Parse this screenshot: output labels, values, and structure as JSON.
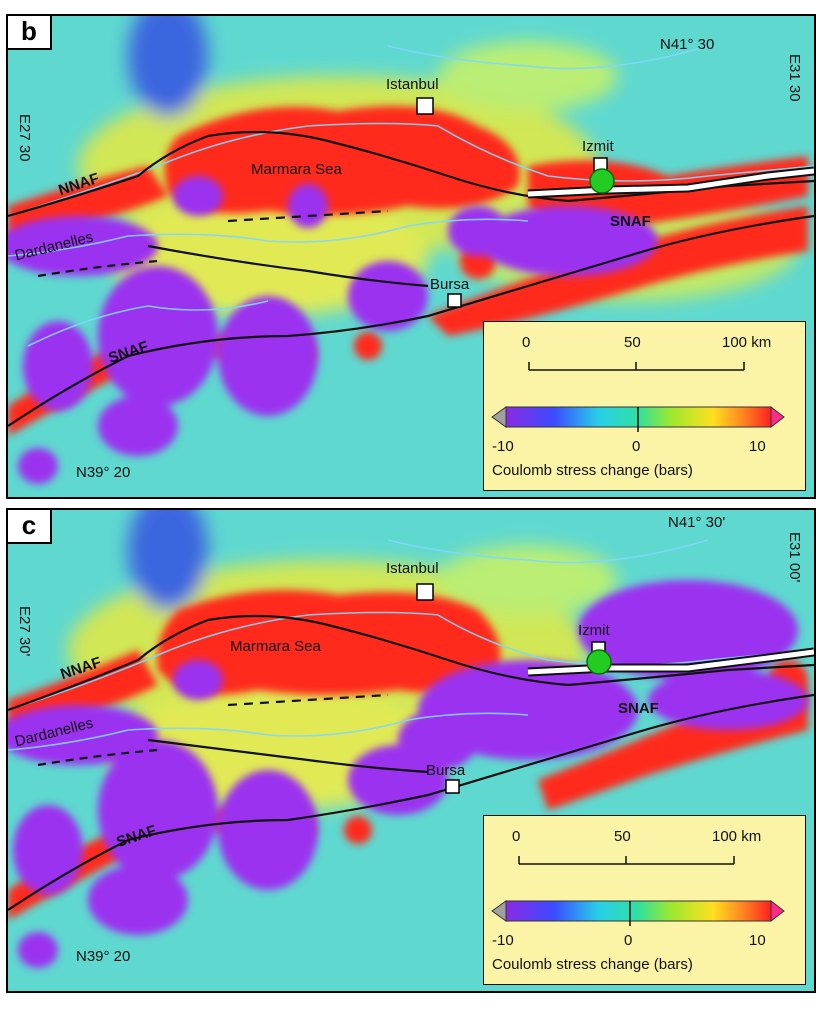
{
  "colors": {
    "ocean_bg": "#5fd8d0",
    "stress_increase": "#ff2a1a",
    "stress_decrease": "#9b32f0",
    "fault_trace": "#111111",
    "coastline": "#7fd8ff",
    "legend_bg": "#fbf3a6",
    "epicenter": "#22cc22"
  },
  "panels": [
    {
      "letter": "b",
      "labels": {
        "lat_top": "N41° 30",
        "lat_bottom": "N39° 20",
        "lon_left": "E27 30",
        "lon_right": "E31 30",
        "nnaf": "NNAF",
        "snaf_west": "SNAF",
        "snaf_east": "SNAF",
        "marmara": "Marmara Sea",
        "dardanelles": "Dardanelles",
        "istanbul": "Istanbul",
        "izmit": "Izmit",
        "bursa": "Bursa"
      },
      "legend": {
        "scale_ticks": [
          "0",
          "50",
          "100 km"
        ],
        "color_ticks": [
          "-10",
          "0",
          "10"
        ],
        "colorbar_title": "Coulomb stress change (bars)"
      }
    },
    {
      "letter": "c",
      "labels": {
        "lat_top": "N41° 30'",
        "lat_bottom": "N39° 20",
        "lon_left": "E27 30'",
        "lon_right": "E31 00'",
        "nnaf": "NNAF",
        "snaf_west": "SNAF",
        "snaf_east": "SNAF",
        "marmara": "Marmara Sea",
        "dardanelles": "Dardanelles",
        "istanbul": "Istanbul",
        "izmit": "Izmit",
        "bursa": "Bursa"
      },
      "legend": {
        "scale_ticks": [
          "0",
          "50",
          "100 km"
        ],
        "color_ticks": [
          "-10",
          "0",
          "10"
        ],
        "colorbar_title": "Coulomb stress change (bars)"
      }
    }
  ]
}
